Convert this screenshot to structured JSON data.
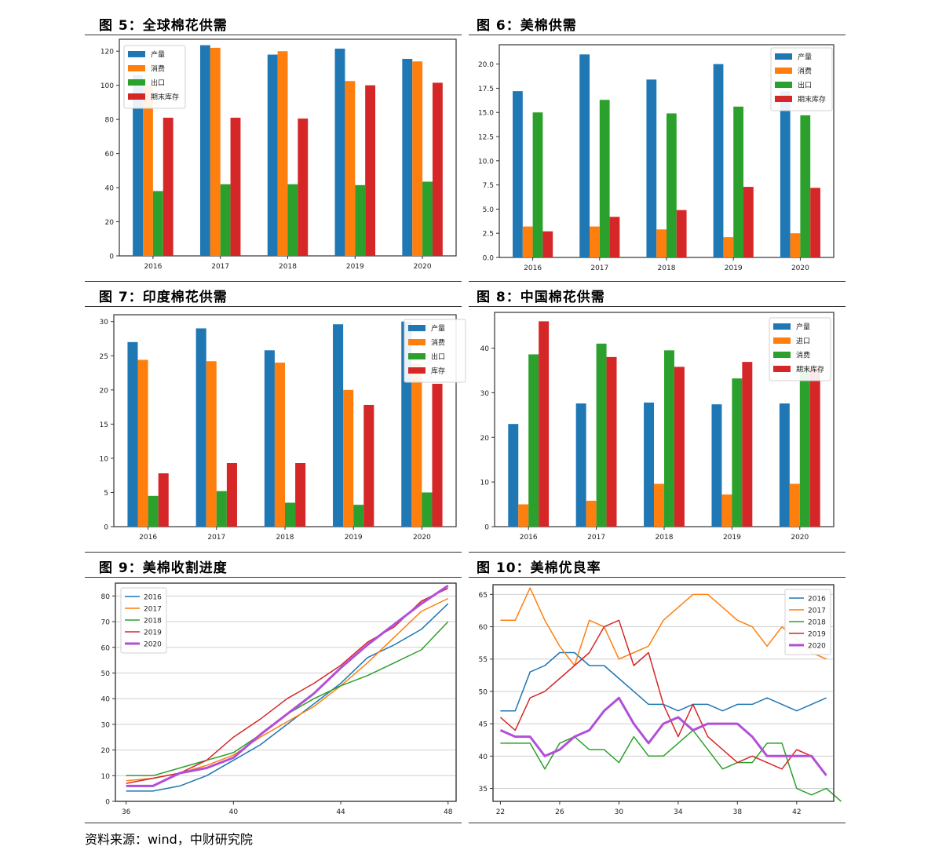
{
  "charts": [
    {
      "title": "图 5：全球棉花供需",
      "chart_data": {
        "type": "bar",
        "categories": [
          "2016",
          "2017",
          "2018",
          "2019",
          "2020"
        ],
        "series": [
          {
            "name": "产量",
            "color": "#1f77b4",
            "values": [
              106,
              123.5,
              118,
              121.5,
              115.5
            ]
          },
          {
            "name": "消费",
            "color": "#ff7f0e",
            "values": [
              100,
              122,
              120,
              102.5,
              114
            ]
          },
          {
            "name": "出口",
            "color": "#2ca02c",
            "values": [
              38,
              42,
              42,
              41.5,
              43.5
            ]
          },
          {
            "name": "期末库存",
            "color": "#d62728",
            "values": [
              81,
              81,
              80.5,
              100,
              101.5
            ]
          }
        ],
        "ylim": [
          0,
          127
        ],
        "yticks": [
          0,
          20,
          40,
          60,
          80,
          100,
          120
        ],
        "legend": "top-left",
        "grid": false
      }
    },
    {
      "title": "图 6：美棉供需",
      "chart_data": {
        "type": "bar",
        "categories": [
          "2016",
          "2017",
          "2018",
          "2019",
          "2020"
        ],
        "series": [
          {
            "name": "产量",
            "color": "#1f77b4",
            "values": [
              17.2,
              21,
              18.4,
              20,
              17.2
            ]
          },
          {
            "name": "消费",
            "color": "#ff7f0e",
            "values": [
              3.2,
              3.2,
              2.9,
              2.1,
              2.5
            ]
          },
          {
            "name": "出口",
            "color": "#2ca02c",
            "values": [
              15,
              16.3,
              14.9,
              15.6,
              14.7
            ]
          },
          {
            "name": "期末库存",
            "color": "#d62728",
            "values": [
              2.7,
              4.2,
              4.9,
              7.3,
              7.2
            ]
          }
        ],
        "ylim": [
          0,
          22
        ],
        "yticks": [
          0.0,
          2.5,
          5.0,
          7.5,
          10.0,
          12.5,
          15.0,
          17.5,
          20.0
        ],
        "legend": "top-right",
        "grid": false
      }
    },
    {
      "title": "图 7：印度棉花供需",
      "chart_data": {
        "type": "bar",
        "categories": [
          "2016",
          "2017",
          "2018",
          "2019",
          "2020"
        ],
        "series": [
          {
            "name": "产量",
            "color": "#1f77b4",
            "values": [
              27,
              29,
              25.8,
              29.6,
              30
            ]
          },
          {
            "name": "消费",
            "color": "#ff7f0e",
            "values": [
              24.4,
              24.2,
              24,
              20,
              23.8
            ]
          },
          {
            "name": "出口",
            "color": "#2ca02c",
            "values": [
              4.5,
              5.2,
              3.5,
              3.2,
              5
            ]
          },
          {
            "name": "库存",
            "color": "#d62728",
            "values": [
              7.8,
              9.3,
              9.3,
              17.8,
              20.9
            ]
          }
        ],
        "ylim": [
          0,
          31
        ],
        "yticks": [
          0,
          5,
          10,
          15,
          20,
          25,
          30
        ],
        "legend": "top-right",
        "grid": false
      }
    },
    {
      "title": "图 8：中国棉花供需",
      "chart_data": {
        "type": "bar",
        "categories": [
          "2016",
          "2017",
          "2018",
          "2019",
          "2020"
        ],
        "series": [
          {
            "name": "产量",
            "color": "#1f77b4",
            "values": [
              23,
              27.6,
              27.8,
              27.4,
              27.6
            ]
          },
          {
            "name": "进口",
            "color": "#ff7f0e",
            "values": [
              5,
              5.8,
              9.6,
              7.2,
              9.6
            ]
          },
          {
            "name": "消费",
            "color": "#2ca02c",
            "values": [
              38.6,
              41,
              39.5,
              33.2,
              36
            ]
          },
          {
            "name": "期末库存",
            "color": "#d62728",
            "values": [
              46,
              38,
              35.8,
              36.9,
              35.5
            ]
          }
        ],
        "ylim": [
          0,
          48
        ],
        "yticks": [
          0,
          10,
          20,
          30,
          40
        ],
        "legend": "top-right",
        "grid": false
      }
    },
    {
      "title": "图 9：美棉收割进度",
      "chart_data": {
        "type": "line",
        "xlim": [
          35.6,
          48.3
        ],
        "ylim": [
          0,
          85
        ],
        "xticks": [
          36,
          40,
          44,
          48
        ],
        "yticks": [
          0,
          10,
          20,
          30,
          40,
          50,
          60,
          70,
          80
        ],
        "legend": "top-left",
        "grid": true,
        "series": [
          {
            "name": "2016",
            "color": "#1f77b4",
            "width": 1.5,
            "x": [
              36,
              37,
              38,
              39,
              40,
              41,
              42,
              43,
              44,
              45,
              46,
              47,
              48
            ],
            "y": [
              4,
              4,
              6,
              10,
              16,
              22,
              30,
              38,
              46,
              56,
              61,
              67,
              77
            ]
          },
          {
            "name": "2017",
            "color": "#ff7f0e",
            "width": 1.5,
            "x": [
              36,
              37,
              38,
              39,
              40,
              41,
              42,
              43,
              44,
              45,
              46,
              47,
              48
            ],
            "y": [
              8,
              9,
              11,
              14,
              18,
              25,
              31,
              37,
              45,
              54,
              64,
              74,
              79
            ]
          },
          {
            "name": "2018",
            "color": "#2ca02c",
            "width": 1.5,
            "x": [
              36,
              37,
              38,
              39,
              40,
              41,
              42,
              43,
              44,
              45,
              46,
              47,
              48
            ],
            "y": [
              10,
              10,
              13,
              16,
              19,
              26,
              34,
              40,
              45,
              49,
              54,
              59,
              70
            ]
          },
          {
            "name": "2019",
            "color": "#d62728",
            "width": 1.5,
            "x": [
              36,
              37,
              38,
              39,
              40,
              41,
              42,
              43,
              44,
              45,
              46,
              47,
              48
            ],
            "y": [
              7,
              9,
              11,
              16,
              25,
              32,
              40,
              46,
              53,
              62,
              68,
              78,
              83
            ]
          },
          {
            "name": "2020",
            "color": "#b24fd8",
            "width": 3,
            "x": [
              36,
              37,
              38,
              39,
              40,
              41,
              42,
              43,
              44,
              45,
              46,
              47,
              48
            ],
            "y": [
              6,
              6,
              11,
              13,
              17,
              26,
              34,
              42,
              52,
              61,
              69,
              77,
              84
            ]
          }
        ]
      }
    },
    {
      "title": "图 10：美棉优良率",
      "chart_data": {
        "type": "line",
        "xlim": [
          21.5,
          44.5
        ],
        "ylim": [
          33,
          66.5
        ],
        "xticks": [
          22,
          26,
          30,
          34,
          38,
          42
        ],
        "yticks": [
          35,
          40,
          45,
          50,
          55,
          60,
          65
        ],
        "legend": "top-right",
        "grid": true,
        "series": [
          {
            "name": "2016",
            "color": "#1f77b4",
            "width": 1.5,
            "x": [
              22,
              23,
              24,
              25,
              26,
              27,
              28,
              29,
              30,
              31,
              32,
              33,
              34,
              35,
              36,
              37,
              38,
              39,
              40,
              41,
              42,
              43,
              44
            ],
            "y": [
              47,
              47,
              53,
              54,
              56,
              56,
              54,
              54,
              52,
              50,
              48,
              48,
              47,
              48,
              48,
              47,
              48,
              48,
              49,
              48,
              47,
              48,
              49
            ]
          },
          {
            "name": "2017",
            "color": "#ff7f0e",
            "width": 1.5,
            "x": [
              22,
              23,
              24,
              25,
              26,
              27,
              28,
              29,
              30,
              31,
              32,
              33,
              34,
              35,
              36,
              37,
              38,
              39,
              40,
              41,
              42,
              43,
              44
            ],
            "y": [
              61,
              61,
              66,
              61,
              57,
              54,
              61,
              60,
              55,
              56,
              57,
              61,
              63,
              65,
              65,
              63,
              61,
              60,
              57,
              60,
              58,
              56,
              55
            ]
          },
          {
            "name": "2018",
            "color": "#2ca02c",
            "width": 1.5,
            "x": [
              22,
              23,
              24,
              25,
              26,
              27,
              28,
              29,
              30,
              31,
              32,
              33,
              34,
              35,
              36,
              37,
              38,
              39,
              40,
              41,
              42,
              43,
              44,
              45
            ],
            "y": [
              42,
              42,
              42,
              38,
              42,
              43,
              41,
              41,
              39,
              43,
              40,
              40,
              42,
              44,
              41,
              38,
              39,
              39,
              42,
              42,
              35,
              34,
              35,
              33
            ]
          },
          {
            "name": "2019",
            "color": "#d62728",
            "width": 1.5,
            "x": [
              22,
              23,
              24,
              25,
              26,
              27,
              28,
              29,
              30,
              31,
              32,
              33,
              34,
              35,
              36,
              37,
              38,
              39,
              40,
              41,
              42,
              43
            ],
            "y": [
              46,
              44,
              49,
              50,
              52,
              54,
              56,
              60,
              61,
              54,
              56,
              48,
              43,
              48,
              43,
              41,
              39,
              40,
              39,
              38,
              41,
              40
            ]
          },
          {
            "name": "2020",
            "color": "#b24fd8",
            "width": 3,
            "x": [
              22,
              23,
              24,
              25,
              26,
              27,
              28,
              29,
              30,
              31,
              32,
              33,
              34,
              35,
              36,
              37,
              38,
              39,
              40,
              41,
              42,
              43,
              44
            ],
            "y": [
              44,
              43,
              43,
              40,
              41,
              43,
              44,
              47,
              49,
              45,
              42,
              45,
              46,
              44,
              45,
              45,
              45,
              43,
              40,
              40,
              40,
              40,
              37
            ]
          }
        ]
      }
    }
  ],
  "source": "资料来源：wind，中财研究院"
}
